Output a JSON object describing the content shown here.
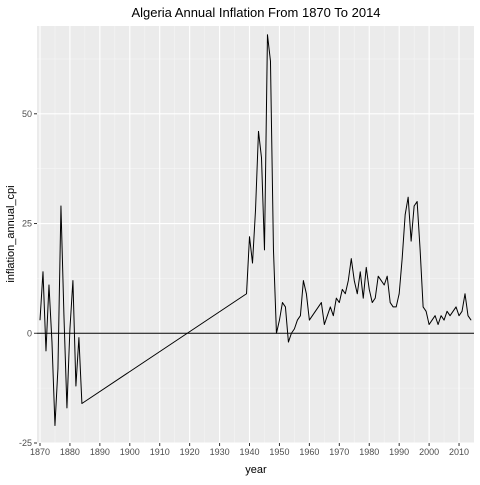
{
  "chart_data": {
    "type": "line",
    "title": "Algeria Annual Inflation From 1870 To 2014",
    "xlabel": "year",
    "ylabel": "inflation_annual_cpi",
    "xlim": [
      1869,
      2015
    ],
    "ylim": [
      -25,
      70
    ],
    "x_ticks": [
      1870,
      1880,
      1890,
      1900,
      1910,
      1920,
      1930,
      1940,
      1950,
      1960,
      1970,
      1980,
      1990,
      2000,
      2010
    ],
    "y_ticks": [
      -25,
      0,
      25,
      50
    ],
    "grid": true,
    "reference_line_y": 0,
    "colors": {
      "panel": "#ebebeb",
      "grid_major": "#ffffff",
      "grid_minor": "#f5f5f5",
      "line": "#000000"
    },
    "series": [
      {
        "x": [
          1870,
          1871,
          1872,
          1873,
          1874,
          1875,
          1876,
          1877,
          1878,
          1879,
          1880,
          1881,
          1882,
          1883,
          1884,
          1939,
          1940,
          1941,
          1942,
          1943,
          1944,
          1945,
          1946,
          1947,
          1948,
          1949,
          1950,
          1951,
          1952,
          1953,
          1954,
          1955,
          1956,
          1957,
          1958,
          1959,
          1960,
          1961,
          1962,
          1963,
          1964,
          1965,
          1966,
          1967,
          1968,
          1969,
          1970,
          1971,
          1972,
          1973,
          1974,
          1975,
          1976,
          1977,
          1978,
          1979,
          1980,
          1981,
          1982,
          1983,
          1984,
          1985,
          1986,
          1987,
          1988,
          1989,
          1990,
          1991,
          1992,
          1993,
          1994,
          1995,
          1996,
          1997,
          1998,
          1999,
          2000,
          2001,
          2002,
          2003,
          2004,
          2005,
          2006,
          2007,
          2008,
          2009,
          2010,
          2011,
          2012,
          2013,
          2014
        ],
        "values": [
          3,
          14,
          -4,
          11,
          -2,
          -21,
          -8,
          29,
          4,
          -17,
          1,
          12,
          -12,
          -1,
          -16,
          9,
          22,
          16,
          28,
          46,
          40,
          19,
          68,
          62,
          19,
          0,
          3,
          7,
          6,
          -2,
          0,
          1,
          3,
          4,
          12,
          9,
          3,
          4,
          5,
          6,
          7,
          2,
          4,
          6,
          4,
          8,
          7,
          10,
          9,
          12,
          17,
          12,
          9,
          14,
          8,
          15,
          10,
          7,
          8,
          13,
          12,
          11,
          13,
          7,
          6,
          6,
          9,
          17,
          27,
          31,
          21,
          29,
          30,
          19,
          6,
          5,
          2,
          3,
          4,
          2,
          4,
          3,
          5,
          4,
          5,
          6,
          4,
          5,
          9,
          4,
          3
        ]
      }
    ]
  }
}
